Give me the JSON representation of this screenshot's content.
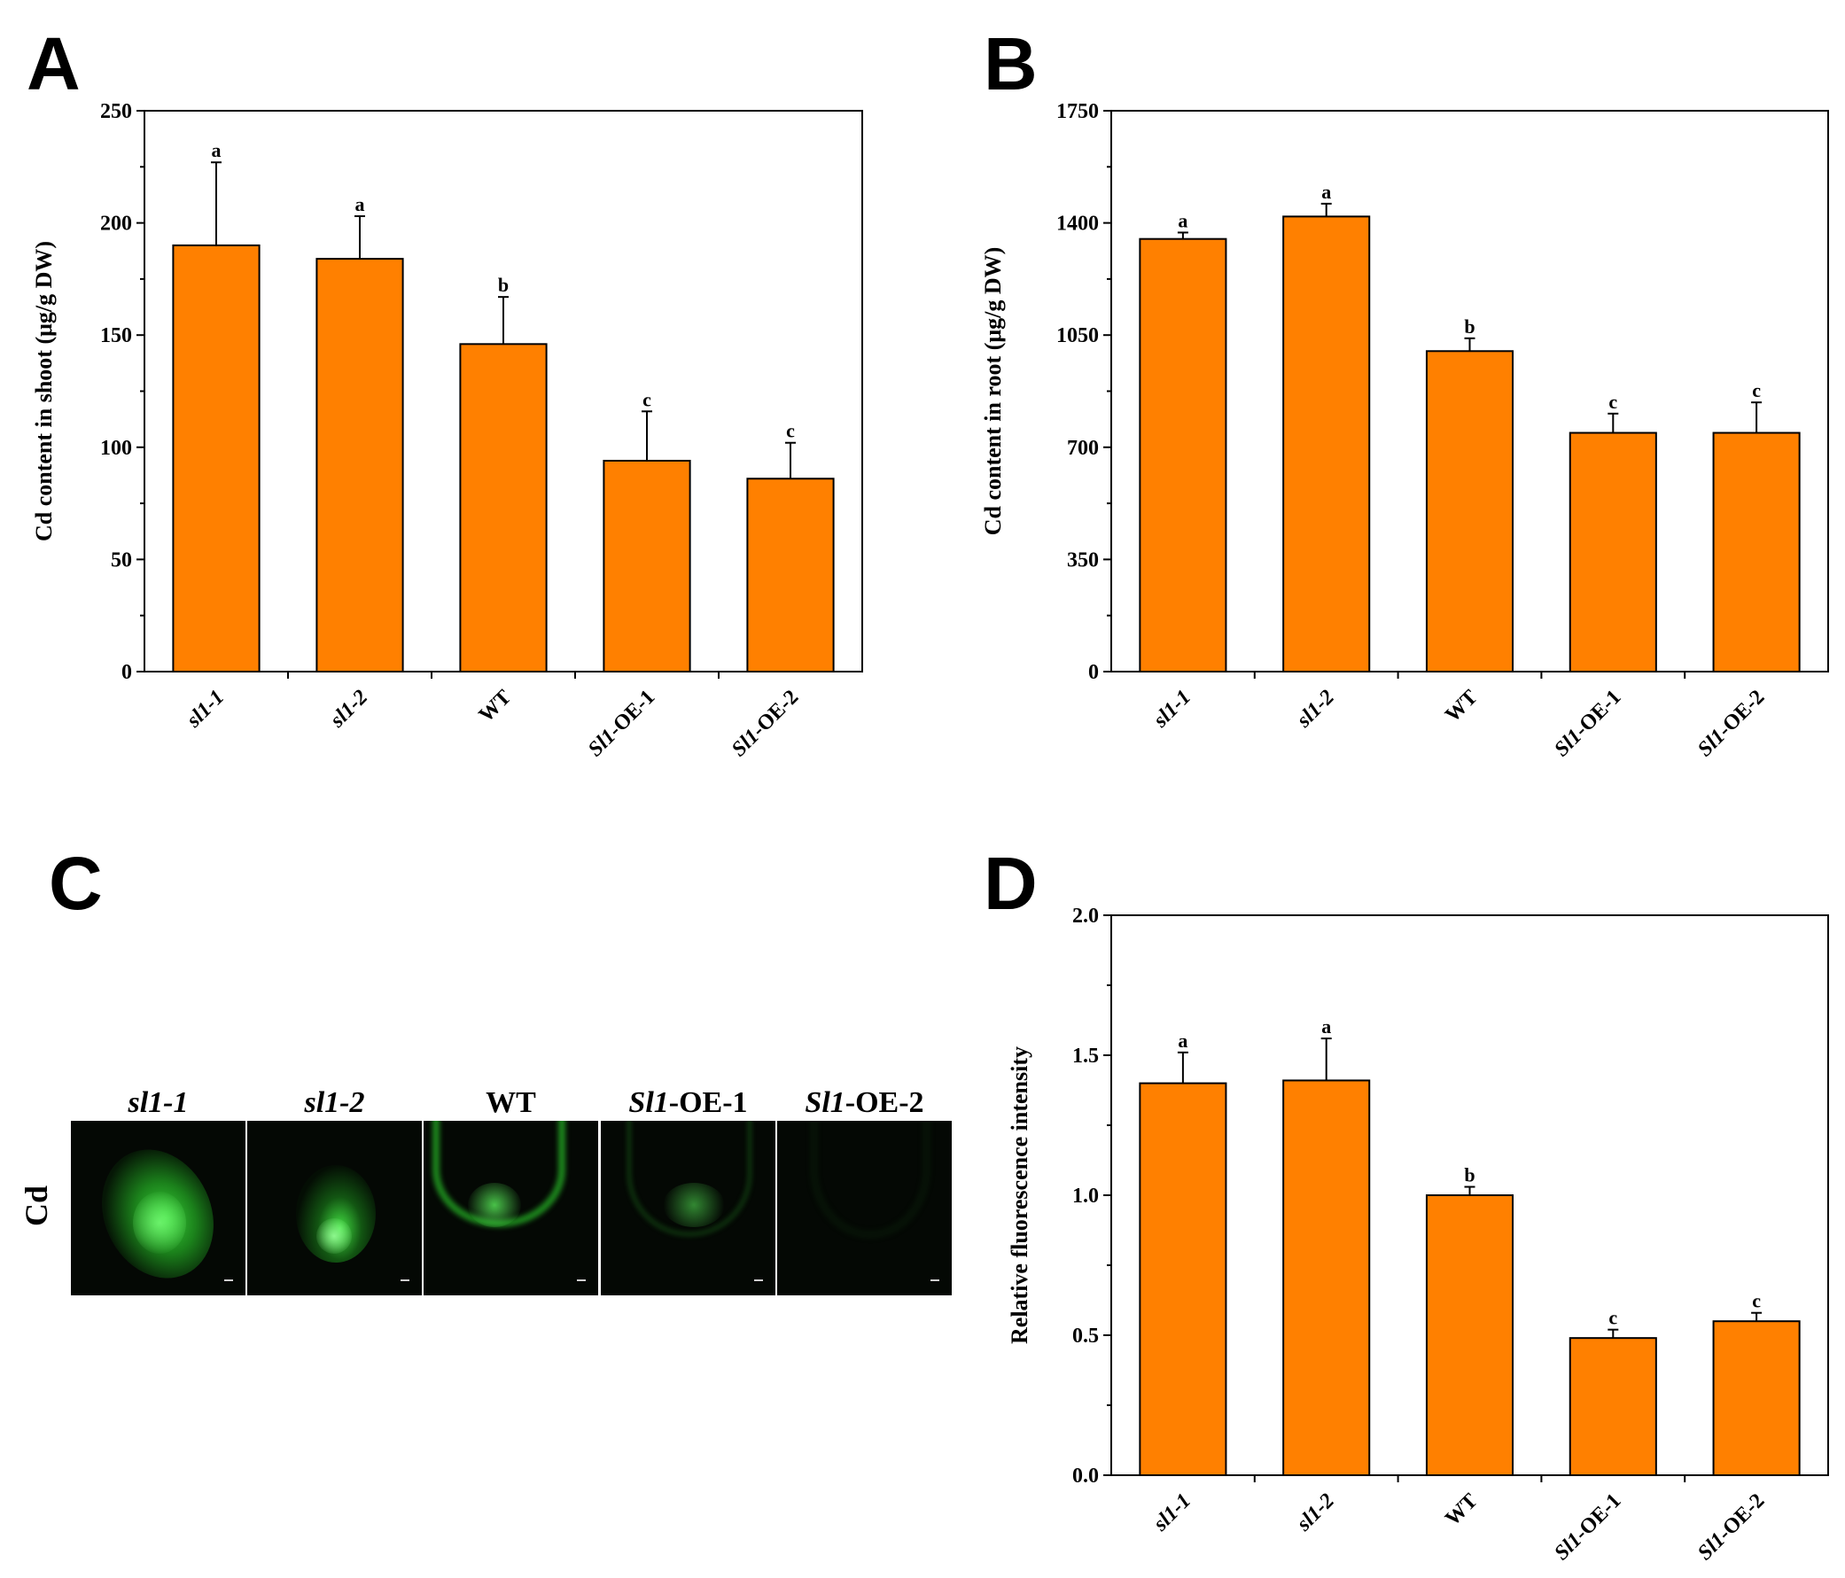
{
  "panels": {
    "a": "A",
    "b": "B",
    "c": "C",
    "d": "D"
  },
  "colors": {
    "bar": "#FF8000",
    "fluor": "#1fae1f",
    "background": "#040804"
  },
  "chart_data": [
    {
      "id": "A",
      "type": "bar",
      "categories": [
        [
          "s",
          "l1",
          "-1"
        ],
        [
          "s",
          "l1",
          "-2"
        ],
        [
          "WT"
        ],
        [
          "S",
          "l1",
          "-OE-1"
        ],
        [
          "S",
          "l1",
          "-OE-2"
        ]
      ],
      "values": [
        190,
        184,
        146,
        94,
        86
      ],
      "errors": [
        37,
        19,
        21,
        22,
        16
      ],
      "letters": [
        "a",
        "a",
        "b",
        "c",
        "c"
      ],
      "ylabel": "Cd content in shoot (μg/g DW)",
      "ylim": [
        0,
        250
      ],
      "yticks": [
        0,
        50,
        100,
        150,
        200,
        250
      ],
      "yticklabels": [
        "0",
        "50",
        "100",
        "150",
        "200",
        "250"
      ]
    },
    {
      "id": "B",
      "type": "bar",
      "categories": [
        [
          "s",
          "l1",
          "-1"
        ],
        [
          "s",
          "l1",
          "-2"
        ],
        [
          "WT"
        ],
        [
          "S",
          "l1",
          "-OE-1"
        ],
        [
          "S",
          "l1",
          "-OE-2"
        ]
      ],
      "values": [
        1350,
        1420,
        1000,
        745,
        745
      ],
      "errors": [
        20,
        40,
        40,
        60,
        95
      ],
      "letters": [
        "a",
        "a",
        "b",
        "c",
        "c"
      ],
      "ylabel": "Cd content in root (μg/g DW)",
      "ylim": [
        0,
        1750
      ],
      "yticks": [
        0,
        350,
        700,
        1050,
        1400,
        1750
      ],
      "yticklabels": [
        "0",
        "350",
        "700",
        "1050",
        "1400",
        "1750"
      ]
    },
    {
      "id": "D",
      "type": "bar",
      "categories": [
        [
          "s",
          "l1",
          "-1"
        ],
        [
          "s",
          "l1",
          "-2"
        ],
        [
          "WT"
        ],
        [
          "S",
          "l1",
          "-OE-1"
        ],
        [
          "S",
          "l1",
          "-OE-2"
        ]
      ],
      "values": [
        1.4,
        1.41,
        1.0,
        0.49,
        0.55
      ],
      "errors": [
        0.11,
        0.15,
        0.03,
        0.03,
        0.03
      ],
      "letters": [
        "a",
        "a",
        "b",
        "c",
        "c"
      ],
      "ylabel": "Relative fluorescence intensity",
      "ylim": [
        0,
        2.0
      ],
      "yticks": [
        0,
        0.5,
        1.0,
        1.5,
        2.0
      ],
      "yticklabels": [
        "0.0",
        "0.5",
        "1.0",
        "1.5",
        "2.0"
      ]
    }
  ],
  "micrograph": {
    "row_label": "Cd",
    "columns": [
      {
        "prefix": "",
        "italic": "sl1-1",
        "suffix": ""
      },
      {
        "prefix": "",
        "italic": "sl1-2",
        "suffix": ""
      },
      {
        "prefix": "WT",
        "italic": "",
        "suffix": ""
      },
      {
        "prefix": "",
        "italic": "Sl1",
        "suffix": "-OE-1"
      },
      {
        "prefix": "",
        "italic": "Sl1",
        "suffix": "-OE-2"
      }
    ]
  }
}
